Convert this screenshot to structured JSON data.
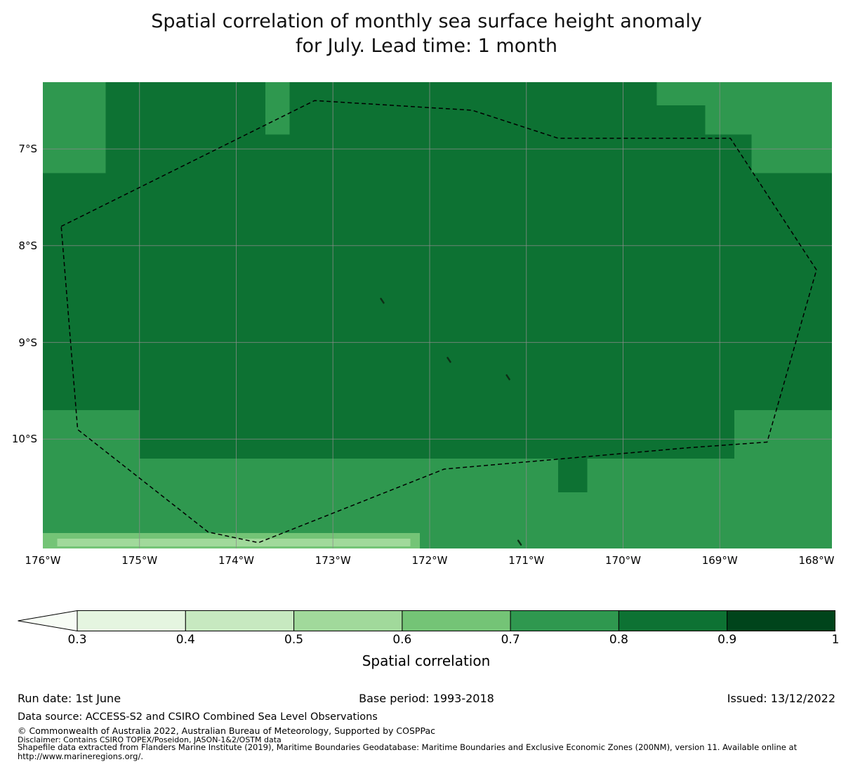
{
  "title": {
    "line1": "Spatial correlation of monthly sea surface height anomaly",
    "line2": "for July. Lead time: 1 month"
  },
  "chart_data": {
    "type": "heatmap",
    "title": "Spatial correlation of monthly sea surface height anomaly for July. Lead time: 1 month",
    "variable": "Spatial correlation",
    "lon_range_degW": [
      176.0,
      167.84
    ],
    "lat_range_degS": [
      6.31,
      11.13
    ],
    "x_ticks": [
      {
        "label": "176°W",
        "lon": 176
      },
      {
        "label": "175°W",
        "lon": 175
      },
      {
        "label": "174°W",
        "lon": 174
      },
      {
        "label": "173°W",
        "lon": 173
      },
      {
        "label": "172°W",
        "lon": 172
      },
      {
        "label": "171°W",
        "lon": 171
      },
      {
        "label": "170°W",
        "lon": 170
      },
      {
        "label": "169°W",
        "lon": 169
      },
      {
        "label": "168°W",
        "lon": 168
      }
    ],
    "y_ticks": [
      {
        "label": "7°S",
        "lat": 7
      },
      {
        "label": "8°S",
        "lat": 8
      },
      {
        "label": "9°S",
        "lat": 9
      },
      {
        "label": "10°S",
        "lat": 10
      }
    ],
    "grid_lons_degW": [
      175,
      174,
      173,
      172,
      171,
      170,
      169
    ],
    "grid_lats_degS": [
      7,
      8,
      9,
      10
    ],
    "bin_edges": [
      0.3,
      0.4,
      0.5,
      0.6,
      0.7,
      0.8,
      0.9,
      1.0
    ],
    "bin_colors": [
      "#f7fcf5",
      "#e5f5e0",
      "#c7e9c0",
      "#a1d99b",
      "#74c476",
      "#2f984f",
      "#0d7233",
      "#00441b"
    ],
    "regions": [
      {
        "value": 0.75,
        "lon_degW": [
          176.0,
          167.84
        ],
        "lat_degS": [
          6.31,
          11.13
        ]
      },
      {
        "value": 0.85,
        "lon_degW": [
          175.35,
          173.7
        ],
        "lat_degS": [
          6.31,
          6.85
        ]
      },
      {
        "value": 0.85,
        "lon_degW": [
          173.45,
          169.65
        ],
        "lat_degS": [
          6.31,
          6.55
        ]
      },
      {
        "value": 0.85,
        "lon_degW": [
          173.45,
          169.15
        ],
        "lat_degS": [
          6.55,
          6.85
        ]
      },
      {
        "value": 0.85,
        "lon_degW": [
          175.35,
          168.67
        ],
        "lat_degS": [
          6.85,
          7.25
        ]
      },
      {
        "value": 0.85,
        "lon_degW": [
          176.0,
          167.84
        ],
        "lat_degS": [
          7.25,
          9.7
        ]
      },
      {
        "value": 0.85,
        "lon_degW": [
          175.0,
          168.85
        ],
        "lat_degS": [
          9.7,
          10.2
        ]
      },
      {
        "value": 0.85,
        "lon_degW": [
          170.67,
          170.37
        ],
        "lat_degS": [
          10.2,
          10.55
        ]
      },
      {
        "value": 0.65,
        "lon_degW": [
          176.0,
          172.1
        ],
        "lat_degS": [
          10.97,
          11.13
        ]
      },
      {
        "value": 0.55,
        "lon_degW": [
          175.85,
          172.2
        ],
        "lat_degS": [
          11.03,
          11.11
        ]
      }
    ],
    "eez_boundary_degW_degS": [
      [
        175.81,
        7.8
      ],
      [
        173.19,
        6.5
      ],
      [
        171.56,
        6.6
      ],
      [
        170.67,
        6.89
      ],
      [
        168.89,
        6.89
      ],
      [
        168.0,
        8.25
      ],
      [
        168.51,
        10.03
      ],
      [
        169.34,
        10.09
      ],
      [
        171.85,
        10.31
      ],
      [
        173.77,
        11.07
      ],
      [
        174.29,
        10.96
      ],
      [
        175.64,
        9.9
      ]
    ],
    "islands_degW_degS": [
      [
        172.49,
        8.57
      ],
      [
        171.8,
        9.18
      ],
      [
        171.19,
        9.36
      ],
      [
        171.07,
        11.07
      ]
    ],
    "grid_color": "#8c8c8c",
    "boundary_color": "#000000",
    "island_color": "#0d2e15"
  },
  "colorbar": {
    "label": "Spatial correlation",
    "tick_labels": [
      "0.3",
      "0.4",
      "0.5",
      "0.6",
      "0.7",
      "0.8",
      "0.9",
      "1"
    ],
    "under_arrow_color": "#f7fcf5",
    "segment_colors": [
      "#e5f5e0",
      "#c7e9c0",
      "#a1d99b",
      "#74c476",
      "#2f984f",
      "#0d7233",
      "#00441b"
    ],
    "outline_color": "#000000"
  },
  "footer": {
    "run_date": "Run date: 1st June",
    "base_period": "Base period: 1993-2018",
    "issued": "Issued: 13/12/2022",
    "data_source": "Data source: ACCESS-S2 and CSIRO Combined Sea Level Observations",
    "copyright": "© Commonwealth of Australia 2022, Australian Bureau of Meteorology, Supported by COSPPac",
    "disclaimer": "Disclaimer: Contains CSIRO TOPEX/Poseidon, JASON-1&2/OSTM data",
    "shapefile_line1": "Shapefile data extracted from Flanders Marine Institute (2019), Maritime Boundaries Geodatabase: Maritime Boundaries and Exclusive Economic Zones (200NM), version 11. Available online at",
    "shapefile_line2": "http://www.marineregions.org/."
  }
}
